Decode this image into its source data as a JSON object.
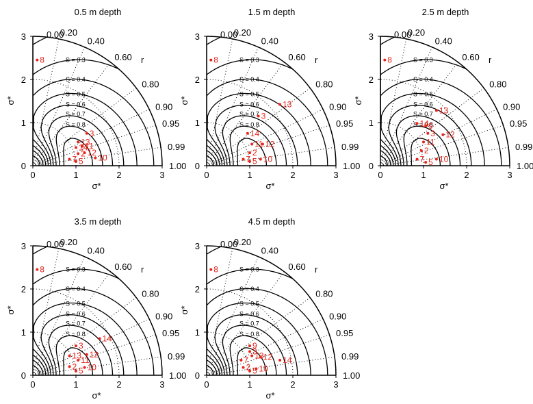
{
  "chart_data": [
    {
      "type": "scatter",
      "title": "0.5 m depth",
      "xlabel": "σ*",
      "ylabel": "σ*",
      "xlim": [
        0,
        3
      ],
      "ylim": [
        0,
        3
      ],
      "x_ticks": [
        "0",
        "1",
        "2",
        "3"
      ],
      "y_ticks": [
        "0",
        "1",
        "2",
        "3"
      ],
      "correlation_label": "r",
      "correlation_ticks": [
        "0.00",
        "0.20",
        "0.40",
        "0.60",
        "0.80",
        "0.90",
        "0.95",
        "0.99",
        "1.00"
      ],
      "skill_contours": [
        "S = 0.3",
        "S = 0.4",
        "S = 0.5",
        "S = 0.6",
        "S = 0.7",
        "S = 0.8"
      ],
      "series": [
        {
          "name": "",
          "color": "#e8241b",
          "points": [
            {
              "label": "8",
              "x": 0.1,
              "y": 2.45
            },
            {
              "label": "3",
              "x": 1.25,
              "y": 0.75
            },
            {
              "label": "13",
              "x": 1.05,
              "y": 0.55
            },
            {
              "label": "14",
              "x": 1.0,
              "y": 0.42
            },
            {
              "label": "11",
              "x": 1.15,
              "y": 0.45
            },
            {
              "label": "12",
              "x": 1.2,
              "y": 0.3
            },
            {
              "label": "2",
              "x": 1.05,
              "y": 0.28
            },
            {
              "label": "7",
              "x": 0.85,
              "y": 0.15
            },
            {
              "label": "5",
              "x": 1.0,
              "y": 0.1
            },
            {
              "label": "10",
              "x": 1.45,
              "y": 0.18
            }
          ]
        }
      ]
    },
    {
      "type": "scatter",
      "title": "1.5 m depth",
      "xlabel": "σ*",
      "ylabel": "σ*",
      "xlim": [
        0,
        3
      ],
      "ylim": [
        0,
        3
      ],
      "x_ticks": [
        "0",
        "1",
        "2",
        "3"
      ],
      "y_ticks": [
        "0",
        "1",
        "2",
        "3"
      ],
      "correlation_label": "r",
      "correlation_ticks": [
        "0.00",
        "0.20",
        "0.40",
        "0.60",
        "0.80",
        "0.90",
        "0.95",
        "0.99",
        "1.00"
      ],
      "skill_contours": [
        "S = 0.3",
        "S = 0.4",
        "S = 0.5",
        "S = 0.6",
        "S = 0.7",
        "S = 0.8"
      ],
      "series": [
        {
          "name": "",
          "color": "#e8241b",
          "points": [
            {
              "label": "8",
              "x": 0.1,
              "y": 2.45
            },
            {
              "label": "13",
              "x": 1.7,
              "y": 1.42
            },
            {
              "label": "3",
              "x": 1.2,
              "y": 1.15
            },
            {
              "label": "14",
              "x": 0.95,
              "y": 0.75
            },
            {
              "label": "11",
              "x": 1.05,
              "y": 0.5
            },
            {
              "label": "12",
              "x": 1.3,
              "y": 0.5
            },
            {
              "label": "2",
              "x": 1.0,
              "y": 0.3
            },
            {
              "label": "7",
              "x": 0.85,
              "y": 0.15
            },
            {
              "label": "5",
              "x": 1.0,
              "y": 0.1
            },
            {
              "label": "10",
              "x": 1.25,
              "y": 0.15
            }
          ]
        }
      ]
    },
    {
      "type": "scatter",
      "title": "2.5 m depth",
      "xlabel": "σ*",
      "ylabel": "σ*",
      "xlim": [
        0,
        3
      ],
      "ylim": [
        0,
        3
      ],
      "x_ticks": [
        "0",
        "1",
        "2",
        "3"
      ],
      "y_ticks": [
        "0",
        "1",
        "2",
        "3"
      ],
      "correlation_label": "r",
      "correlation_ticks": [
        "0.00",
        "0.20",
        "0.40",
        "0.60",
        "0.80",
        "0.90",
        "0.95",
        "0.99",
        "1.00"
      ],
      "skill_contours": [
        "S = 0.3",
        "S = 0.4",
        "S = 0.5",
        "S = 0.6",
        "S = 0.7",
        "S = 0.8"
      ],
      "series": [
        {
          "name": "",
          "color": "#e8241b",
          "points": [
            {
              "label": "8",
              "x": 0.1,
              "y": 2.45
            },
            {
              "label": "13",
              "x": 1.3,
              "y": 1.28
            },
            {
              "label": "14",
              "x": 0.85,
              "y": 0.98
            },
            {
              "label": "9",
              "x": 1.05,
              "y": 0.92
            },
            {
              "label": "3",
              "x": 1.1,
              "y": 0.75
            },
            {
              "label": "12",
              "x": 1.45,
              "y": 0.72
            },
            {
              "label": "11",
              "x": 1.0,
              "y": 0.55
            },
            {
              "label": "2",
              "x": 0.95,
              "y": 0.35
            },
            {
              "label": "7",
              "x": 0.85,
              "y": 0.15
            },
            {
              "label": "5",
              "x": 1.05,
              "y": 0.08
            },
            {
              "label": "10",
              "x": 1.3,
              "y": 0.15
            }
          ]
        }
      ]
    },
    {
      "type": "scatter",
      "title": "3.5 m depth",
      "xlabel": "σ*",
      "ylabel": "σ*",
      "xlim": [
        0,
        3
      ],
      "ylim": [
        0,
        3
      ],
      "x_ticks": [
        "0",
        "1",
        "2",
        "3"
      ],
      "y_ticks": [
        "0",
        "1",
        "2",
        "3"
      ],
      "correlation_label": "r",
      "correlation_ticks": [
        "0.00",
        "0.20",
        "0.40",
        "0.60",
        "0.80",
        "0.90",
        "0.95",
        "0.99",
        "1.00"
      ],
      "skill_contours": [
        "S = 0.3",
        "S = 0.4",
        "S = 0.5",
        "S = 0.6",
        "S = 0.7",
        "S = 0.8"
      ],
      "series": [
        {
          "name": "",
          "color": "#e8241b",
          "points": [
            {
              "label": "8",
              "x": 0.1,
              "y": 2.45
            },
            {
              "label": "14",
              "x": 1.55,
              "y": 0.85
            },
            {
              "label": "3",
              "x": 1.0,
              "y": 0.68
            },
            {
              "label": "13",
              "x": 0.85,
              "y": 0.45
            },
            {
              "label": "12",
              "x": 1.25,
              "y": 0.48
            },
            {
              "label": "11",
              "x": 1.05,
              "y": 0.35
            },
            {
              "label": "2",
              "x": 0.85,
              "y": 0.2
            },
            {
              "label": "5",
              "x": 1.0,
              "y": 0.1
            },
            {
              "label": "10",
              "x": 1.2,
              "y": 0.18
            }
          ]
        }
      ]
    },
    {
      "type": "scatter",
      "title": "4.5 m depth",
      "xlabel": "σ*",
      "ylabel": "σ*",
      "xlim": [
        0,
        3
      ],
      "ylim": [
        0,
        3
      ],
      "x_ticks": [
        "0",
        "1",
        "2",
        "3"
      ],
      "y_ticks": [
        "0",
        "1",
        "2",
        "3"
      ],
      "correlation_label": "r",
      "correlation_ticks": [
        "0.00",
        "0.20",
        "0.40",
        "0.60",
        "0.80",
        "0.90",
        "0.95",
        "0.99",
        "1.00"
      ],
      "skill_contours": [
        "S = 0.3",
        "S = 0.4",
        "S = 0.5",
        "S = 0.6",
        "S = 0.7",
        "S = 0.8"
      ],
      "series": [
        {
          "name": "",
          "color": "#e8241b",
          "points": [
            {
              "label": "8",
              "x": 0.1,
              "y": 2.45
            },
            {
              "label": "9",
              "x": 1.0,
              "y": 0.68
            },
            {
              "label": "3",
              "x": 1.0,
              "y": 0.55
            },
            {
              "label": "13",
              "x": 1.05,
              "y": 0.45
            },
            {
              "label": "12",
              "x": 1.25,
              "y": 0.42
            },
            {
              "label": "14",
              "x": 1.7,
              "y": 0.35
            },
            {
              "label": "7",
              "x": 0.8,
              "y": 0.35
            },
            {
              "label": "2",
              "x": 0.85,
              "y": 0.18
            },
            {
              "label": "5",
              "x": 1.0,
              "y": 0.1
            },
            {
              "label": "10",
              "x": 1.15,
              "y": 0.15
            }
          ]
        }
      ]
    }
  ]
}
